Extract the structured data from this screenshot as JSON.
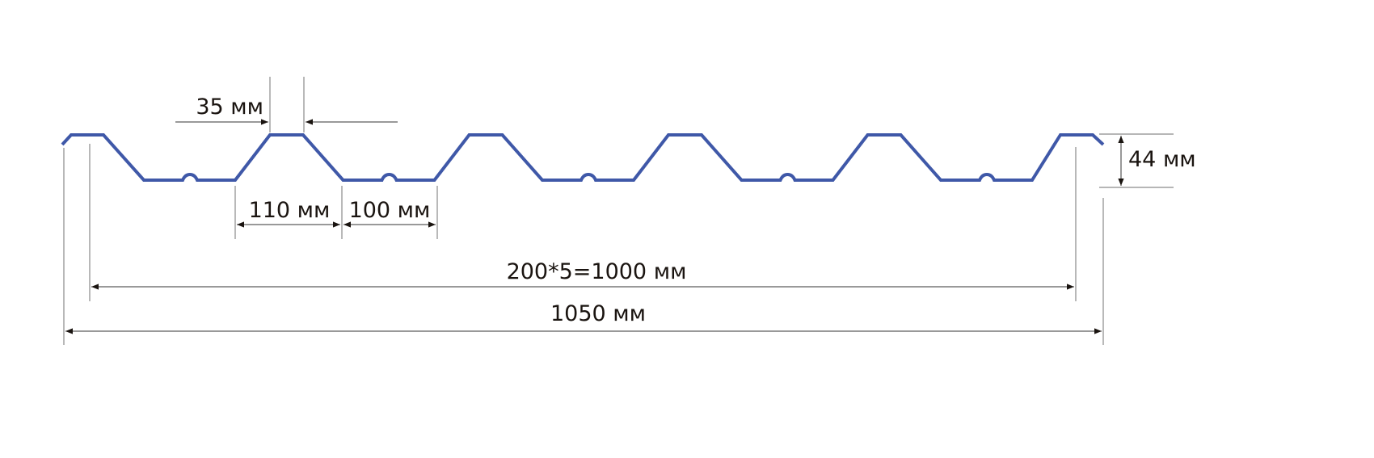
{
  "colors": {
    "profile": "#3f58a8",
    "text": "#1a1410",
    "dimension_lines": "#8a8a8a"
  },
  "labels": {
    "crest_width": "35 мм",
    "height": "44 мм",
    "slope_width": "110 мм",
    "valley_width": "100 мм",
    "effective_width": "200*5=1000 мм",
    "total_width": "1050 мм"
  }
}
